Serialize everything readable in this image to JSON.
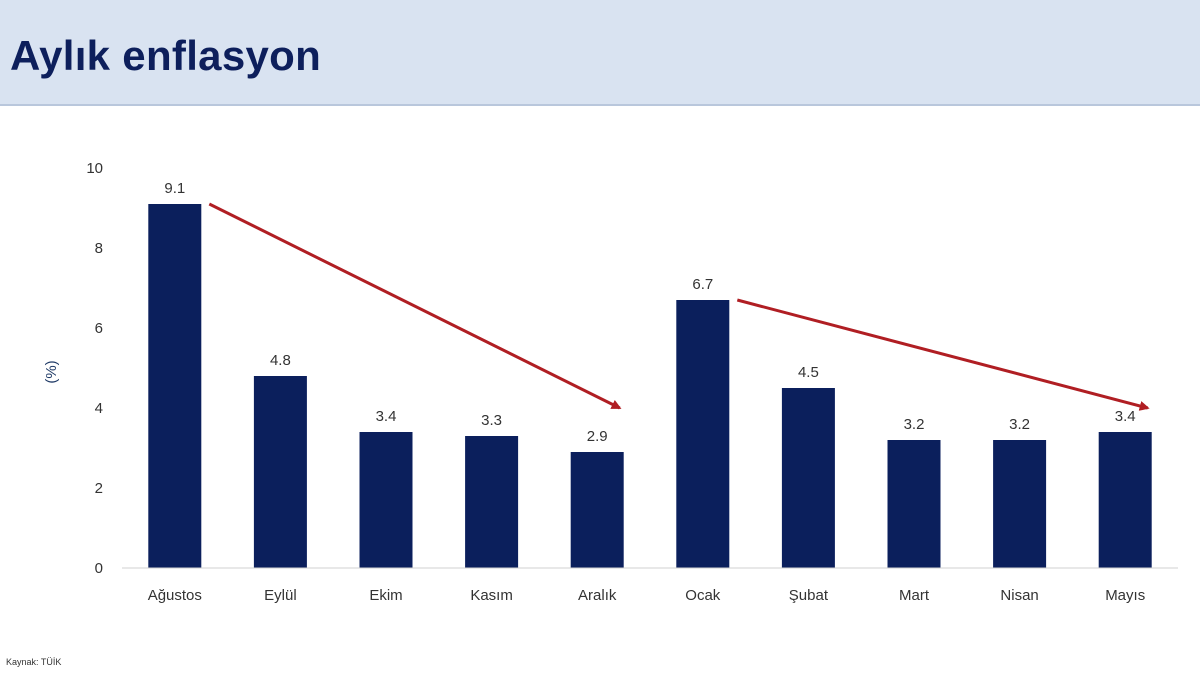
{
  "title": "Aylık enflasyon",
  "source": "Kaynak: TÜİK",
  "chart_data": {
    "type": "bar",
    "ylabel": "(%)",
    "ylim": [
      0,
      10
    ],
    "yticks": [
      0,
      2,
      4,
      6,
      8,
      10
    ],
    "categories": [
      "Ağustos",
      "Eylül",
      "Ekim",
      "Kasım",
      "Aralık",
      "Ocak",
      "Şubat",
      "Mart",
      "Nisan",
      "Mayıs"
    ],
    "values": [
      9.1,
      4.8,
      3.4,
      3.3,
      2.9,
      6.7,
      4.5,
      3.2,
      3.2,
      3.4
    ],
    "data_labels": [
      "9.1",
      "4.8",
      "3.4",
      "3.3",
      "2.9",
      "6.7",
      "4.5",
      "3.2",
      "3.2",
      "3.4"
    ],
    "bar_color": "#0b1f5c",
    "arrow_color": "#b01e23",
    "grid": false,
    "legend": "none",
    "annotations": [
      {
        "type": "arrow",
        "from": {
          "category": "Ağustos",
          "value": 9.1
        },
        "to": {
          "category": "Aralık",
          "value": 4.0
        }
      },
      {
        "type": "arrow",
        "from": {
          "category": "Ocak",
          "value": 6.7
        },
        "to": {
          "category": "Mayıs",
          "value": 4.0
        }
      }
    ]
  }
}
